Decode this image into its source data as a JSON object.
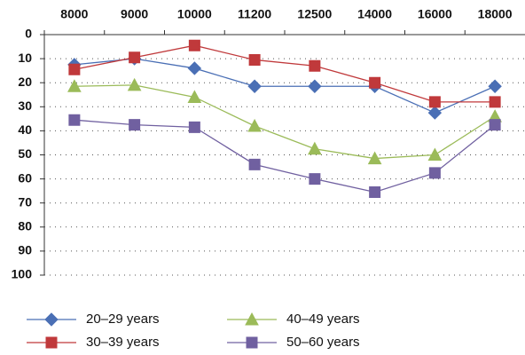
{
  "chart_data": {
    "type": "line",
    "categories": [
      "8000",
      "9000",
      "10000",
      "11200",
      "12500",
      "14000",
      "16000",
      "18000"
    ],
    "series": [
      {
        "name": "20–29 years",
        "color": "#4a6fb5",
        "marker": "diamond",
        "values": [
          12.5,
          10,
          14,
          21.5,
          21.5,
          21.5,
          32.5,
          21.5
        ]
      },
      {
        "name": "30–39 years",
        "color": "#c0393b",
        "marker": "square",
        "values": [
          14.5,
          9.5,
          4.5,
          10.5,
          13,
          20,
          28,
          28
        ]
      },
      {
        "name": "40–49 years",
        "color": "#9bbb59",
        "marker": "triangle",
        "values": [
          21.5,
          21,
          26,
          38,
          47.5,
          51.5,
          50,
          34
        ]
      },
      {
        "name": "50–60 years",
        "color": "#7060a0",
        "marker": "square",
        "values": [
          35.5,
          37.5,
          38.5,
          54,
          60,
          65.5,
          57.5,
          37.5
        ]
      }
    ],
    "ylim": [
      0,
      100
    ],
    "yticks": [
      0,
      10,
      20,
      30,
      40,
      50,
      60,
      70,
      80,
      90,
      100
    ],
    "y_inverted": true,
    "grid": true
  }
}
